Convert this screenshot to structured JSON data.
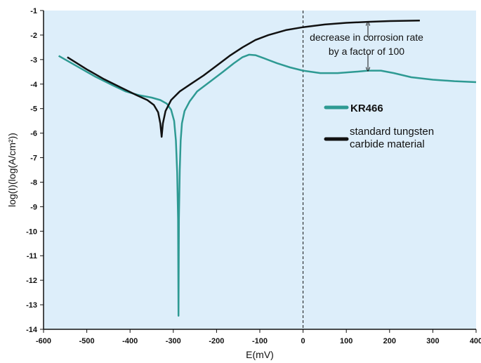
{
  "chart_data": {
    "type": "line",
    "xlabel": "E(mV)",
    "ylabel": "log(I)(log(A/cm²))",
    "xlim": [
      -600,
      400
    ],
    "ylim": [
      -14,
      -1
    ],
    "xticks": [
      -600,
      -500,
      -400,
      -300,
      -200,
      -100,
      0,
      100,
      200,
      300,
      400
    ],
    "yticks": [
      -1,
      -2,
      -3,
      -4,
      -5,
      -6,
      -7,
      -8,
      -9,
      -10,
      -11,
      -12,
      -13,
      -14
    ],
    "reference_line_x": 0,
    "grid": false,
    "legend_position": "right",
    "background_color": "#ddeefa",
    "series": [
      {
        "name": "KR466",
        "color": "#2e9a93",
        "points": [
          [
            -565,
            -2.85
          ],
          [
            -520,
            -3.3
          ],
          [
            -480,
            -3.7
          ],
          [
            -440,
            -4.05
          ],
          [
            -410,
            -4.3
          ],
          [
            -380,
            -4.45
          ],
          [
            -350,
            -4.55
          ],
          [
            -330,
            -4.65
          ],
          [
            -315,
            -4.8
          ],
          [
            -305,
            -5.05
          ],
          [
            -298,
            -5.5
          ],
          [
            -294,
            -6.3
          ],
          [
            -291,
            -7.6
          ],
          [
            -289,
            -9.5
          ],
          [
            -288,
            -13.45
          ],
          [
            -287,
            -9.5
          ],
          [
            -285,
            -7.5
          ],
          [
            -283,
            -6.3
          ],
          [
            -280,
            -5.6
          ],
          [
            -274,
            -5.1
          ],
          [
            -262,
            -4.7
          ],
          [
            -245,
            -4.3
          ],
          [
            -215,
            -3.9
          ],
          [
            -185,
            -3.5
          ],
          [
            -160,
            -3.15
          ],
          [
            -140,
            -2.9
          ],
          [
            -125,
            -2.8
          ],
          [
            -110,
            -2.82
          ],
          [
            -90,
            -2.95
          ],
          [
            -60,
            -3.15
          ],
          [
            -30,
            -3.32
          ],
          [
            0,
            -3.45
          ],
          [
            40,
            -3.55
          ],
          [
            80,
            -3.55
          ],
          [
            120,
            -3.5
          ],
          [
            150,
            -3.45
          ],
          [
            180,
            -3.45
          ],
          [
            210,
            -3.55
          ],
          [
            250,
            -3.72
          ],
          [
            300,
            -3.82
          ],
          [
            350,
            -3.88
          ],
          [
            400,
            -3.92
          ]
        ]
      },
      {
        "name": "standard tungsten carbide material",
        "color": "#111111",
        "points": [
          [
            -545,
            -2.9
          ],
          [
            -500,
            -3.4
          ],
          [
            -460,
            -3.8
          ],
          [
            -420,
            -4.15
          ],
          [
            -385,
            -4.45
          ],
          [
            -360,
            -4.65
          ],
          [
            -345,
            -4.85
          ],
          [
            -335,
            -5.15
          ],
          [
            -330,
            -5.6
          ],
          [
            -327,
            -6.15
          ],
          [
            -324,
            -5.6
          ],
          [
            -318,
            -5.1
          ],
          [
            -305,
            -4.65
          ],
          [
            -285,
            -4.3
          ],
          [
            -260,
            -4.0
          ],
          [
            -230,
            -3.65
          ],
          [
            -200,
            -3.25
          ],
          [
            -170,
            -2.85
          ],
          [
            -140,
            -2.5
          ],
          [
            -110,
            -2.2
          ],
          [
            -80,
            -2.0
          ],
          [
            -40,
            -1.8
          ],
          [
            0,
            -1.68
          ],
          [
            50,
            -1.57
          ],
          [
            100,
            -1.5
          ],
          [
            150,
            -1.46
          ],
          [
            200,
            -1.43
          ],
          [
            270,
            -1.41
          ]
        ]
      }
    ],
    "annotation": {
      "lines": [
        "decrease in corrosion rate",
        "by a factor of 100"
      ],
      "arrow_x": 150,
      "arrow_from": -1.48,
      "arrow_to": -3.45
    }
  }
}
